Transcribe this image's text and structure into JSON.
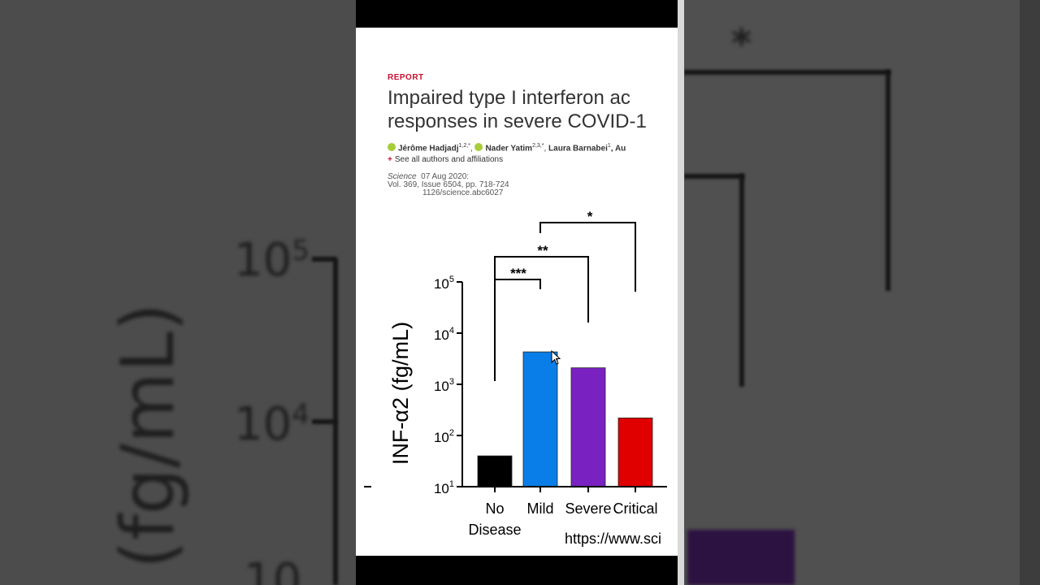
{
  "report_label": "REPORT",
  "title": {
    "line1": "Impaired type I interferon ac",
    "line2": "responses in severe COVID-1"
  },
  "authors": {
    "a1_name": "Jérôme Hadjadj",
    "a1_sup": "1,2,*",
    "a2_name": "Nader Yatim",
    "a2_sup": "2,3,*",
    "a3_name": "Laura Barnabei",
    "a3_sup": "1",
    "trailing": ", Au"
  },
  "affiliations_link": "See all authors and affiliations",
  "citation": {
    "journal": "Science",
    "date": "07 Aug 2020:",
    "volume": "Vol. 369, Issue 6504, pp. 718-724",
    "doi": "1126/science.abc6027"
  },
  "source_url": "https://www.sci",
  "colors": {
    "no_disease": "#000000",
    "mild": "#0a7ee8",
    "severe": "#7a22c1",
    "critical": "#e00000",
    "report_red": "#c8102e",
    "orcid_green": "#a6ce39"
  },
  "chart_data": {
    "type": "bar",
    "ylabel": "INF-α2 (fg/mL)",
    "yscale": "log",
    "ylim": [
      10,
      100000
    ],
    "yticks": [
      {
        "base": "10",
        "exp": "1"
      },
      {
        "base": "10",
        "exp": "2"
      },
      {
        "base": "10",
        "exp": "3"
      },
      {
        "base": "10",
        "exp": "4"
      },
      {
        "base": "10",
        "exp": "5"
      }
    ],
    "categories": [
      {
        "line1": "No",
        "line2": "Disease"
      },
      {
        "line1": "Mild",
        "line2": ""
      },
      {
        "line1": "Severe",
        "line2": ""
      },
      {
        "line1": "Critical",
        "line2": ""
      }
    ],
    "values": [
      40,
      4300,
      2100,
      220
    ],
    "significance": [
      {
        "from": 0,
        "to": 1,
        "label": "***"
      },
      {
        "from": 0,
        "to": 2,
        "label": "**"
      },
      {
        "from": 1,
        "to": 3,
        "label": "*"
      }
    ]
  },
  "blurred_background": {
    "tick_upper": {
      "base": "10",
      "exp": "5"
    },
    "tick_lower": {
      "base": "10",
      "exp": "4"
    },
    "tick_bottom": "10",
    "ylabel_fragment": "(fg/mL)",
    "star": "*"
  }
}
